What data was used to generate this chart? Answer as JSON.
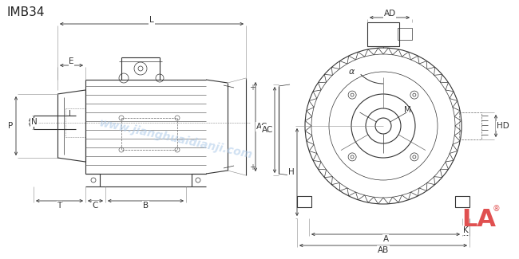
{
  "title": "IMB34",
  "bg_color": "#ffffff",
  "line_color": "#333333",
  "watermark_color": "#aac8e8",
  "logo_color": "#e05050",
  "logo_text": "LA",
  "logo_reg": "®",
  "watermark_text": "www.jianghuaidianji.com"
}
